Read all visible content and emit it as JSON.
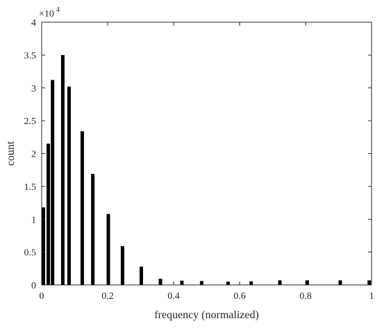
{
  "chart_data": {
    "type": "bar",
    "title": "",
    "xlabel": "frequency (normalized)",
    "ylabel": "count",
    "xlim": [
      0,
      1
    ],
    "ylim": [
      0,
      40000
    ],
    "y_multiplier": {
      "base": "×10",
      "exponent": "4"
    },
    "x_ticks": [
      {
        "value": 0,
        "label": "0"
      },
      {
        "value": 0.2,
        "label": "0.2"
      },
      {
        "value": 0.4,
        "label": "0.4"
      },
      {
        "value": 0.6,
        "label": "0.6"
      },
      {
        "value": 0.8,
        "label": "0.8"
      },
      {
        "value": 1,
        "label": "1"
      }
    ],
    "y_ticks": [
      {
        "value": 0,
        "label": "0"
      },
      {
        "value": 5000,
        "label": "0.5"
      },
      {
        "value": 10000,
        "label": "1"
      },
      {
        "value": 15000,
        "label": "1.5"
      },
      {
        "value": 20000,
        "label": "2"
      },
      {
        "value": 25000,
        "label": "2.5"
      },
      {
        "value": 30000,
        "label": "3"
      },
      {
        "value": 35000,
        "label": "3.5"
      },
      {
        "value": 40000,
        "label": "4"
      }
    ],
    "grid": false,
    "bar_color": "#000000",
    "points": [
      {
        "x": 0.003,
        "y": 11800
      },
      {
        "x": 0.02,
        "y": 21500
      },
      {
        "x": 0.033,
        "y": 31200
      },
      {
        "x": 0.064,
        "y": 35000
      },
      {
        "x": 0.083,
        "y": 30200
      },
      {
        "x": 0.123,
        "y": 23400
      },
      {
        "x": 0.155,
        "y": 16900
      },
      {
        "x": 0.202,
        "y": 10800
      },
      {
        "x": 0.245,
        "y": 5900
      },
      {
        "x": 0.302,
        "y": 2800
      },
      {
        "x": 0.36,
        "y": 950
      },
      {
        "x": 0.425,
        "y": 650
      },
      {
        "x": 0.485,
        "y": 600
      },
      {
        "x": 0.565,
        "y": 500
      },
      {
        "x": 0.635,
        "y": 550
      },
      {
        "x": 0.722,
        "y": 700
      },
      {
        "x": 0.805,
        "y": 700
      },
      {
        "x": 0.905,
        "y": 700
      },
      {
        "x": 0.993,
        "y": 700
      }
    ]
  }
}
